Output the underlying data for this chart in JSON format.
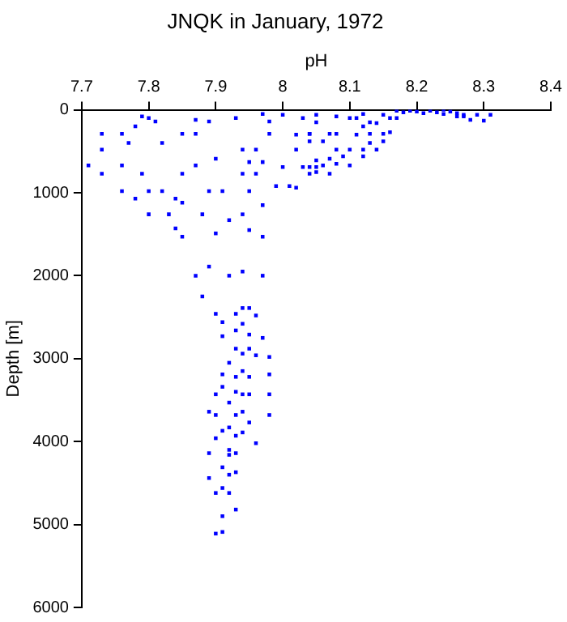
{
  "chart_data": {
    "type": "scatter",
    "title": "JNQK in January, 1972",
    "xlabel": "pH",
    "ylabel": "Depth [m]",
    "xlim": [
      7.7,
      8.4
    ],
    "xticks": [
      7.7,
      7.8,
      7.9,
      8,
      8.1,
      8.2,
      8.3,
      8.4
    ],
    "ylim": [
      6000,
      0
    ],
    "yticks": [
      0,
      1000,
      2000,
      3000,
      4000,
      5000,
      6000
    ],
    "grid": false,
    "legend": false,
    "marker": "square",
    "series": [
      {
        "color": "#0000ff",
        "x": [
          8.17,
          8.18,
          8.19,
          8.2,
          8.21,
          8.22,
          8.23,
          8.24,
          8.25,
          8.26,
          8.15,
          8.16,
          8.13,
          8.12,
          8.27,
          8.28,
          8.3,
          8.1,
          8.11,
          8.05,
          8.03,
          8.02,
          7.97,
          7.93,
          7.87,
          7.8,
          7.79,
          7.73,
          7.76,
          7.78,
          7.77,
          7.73,
          7.71,
          7.73,
          7.76,
          7.81,
          7.82,
          7.85,
          7.87,
          7.89,
          7.9,
          7.87,
          7.85,
          7.79,
          7.76,
          7.78,
          7.8,
          7.82,
          7.84,
          7.8,
          7.83,
          7.85,
          7.85,
          7.84,
          7.88,
          7.89,
          7.91,
          7.9,
          7.89,
          7.87,
          7.88,
          7.92,
          7.94,
          7.94,
          7.95,
          7.97,
          7.97,
          7.92,
          7.94,
          7.96,
          7.95,
          7.97,
          7.98,
          7.98,
          7.94,
          7.96,
          7.95,
          7.97,
          7.99,
          8.0,
          8.02,
          8.03,
          8.04,
          8.05,
          8.0,
          8.01,
          8.02,
          8.05,
          8.08,
          8.11,
          8.12,
          8.04,
          8.07,
          8.08,
          8.04,
          8.06,
          8.13,
          8.15,
          8.16,
          8.15,
          8.13,
          8.14,
          8.08,
          8.1,
          8.09,
          8.12,
          8.12,
          8.05,
          8.07,
          8.08,
          8.1,
          8.06,
          8.04,
          8.05,
          8.07,
          8.04,
          8.14,
          8.17,
          8.26,
          8.27,
          8.29,
          8.31,
          8.24,
          7.9,
          7.91,
          7.93,
          7.94,
          7.95,
          7.96,
          7.94,
          7.91,
          7.93,
          7.95,
          7.97,
          7.92,
          7.93,
          7.94,
          7.95,
          7.96,
          7.98,
          7.91,
          7.93,
          7.94,
          7.95,
          7.98,
          7.9,
          7.91,
          7.93,
          7.94,
          7.95,
          7.98,
          7.92,
          7.89,
          7.9,
          7.93,
          7.94,
          7.98,
          7.95,
          7.92,
          7.91,
          7.93,
          7.94,
          7.9,
          7.96,
          7.92,
          7.89,
          7.93,
          7.92,
          7.91,
          7.93,
          7.92,
          7.89,
          7.91,
          7.9,
          7.92,
          7.93,
          7.91,
          7.9,
          7.91
        ],
        "values": [
          10,
          30,
          10,
          20,
          40,
          10,
          30,
          50,
          20,
          40,
          60,
          100,
          150,
          200,
          60,
          120,
          130,
          100,
          300,
          150,
          100,
          300,
          50,
          100,
          120,
          100,
          80,
          290,
          290,
          200,
          400,
          480,
          670,
          770,
          670,
          140,
          400,
          290,
          290,
          140,
          590,
          670,
          770,
          770,
          980,
          1070,
          980,
          980,
          1070,
          1260,
          1260,
          1120,
          1530,
          1430,
          1260,
          980,
          980,
          1490,
          1890,
          2000,
          2250,
          2000,
          1950,
          1260,
          1450,
          1530,
          2000,
          1330,
          480,
          480,
          630,
          630,
          140,
          290,
          770,
          770,
          980,
          1150,
          920,
          60,
          480,
          690,
          290,
          690,
          690,
          920,
          940,
          60,
          80,
          100,
          50,
          290,
          290,
          290,
          380,
          380,
          290,
          290,
          270,
          380,
          400,
          480,
          480,
          480,
          560,
          480,
          560,
          610,
          590,
          650,
          670,
          670,
          690,
          750,
          770,
          770,
          160,
          100,
          80,
          80,
          60,
          60,
          0,
          2460,
          2560,
          2460,
          2390,
          2390,
          2480,
          2580,
          2730,
          2660,
          2710,
          2750,
          3050,
          2880,
          2940,
          2880,
          2960,
          2980,
          3190,
          3220,
          3150,
          3220,
          3190,
          3430,
          3340,
          3400,
          3430,
          3430,
          3430,
          3530,
          3640,
          3680,
          3680,
          3640,
          3680,
          3770,
          3830,
          3870,
          3930,
          3890,
          3960,
          4020,
          4100,
          4140,
          4140,
          4160,
          4310,
          4370,
          4400,
          4440,
          4560,
          4620,
          4620,
          4820,
          4900,
          5110,
          5090
        ]
      }
    ]
  }
}
